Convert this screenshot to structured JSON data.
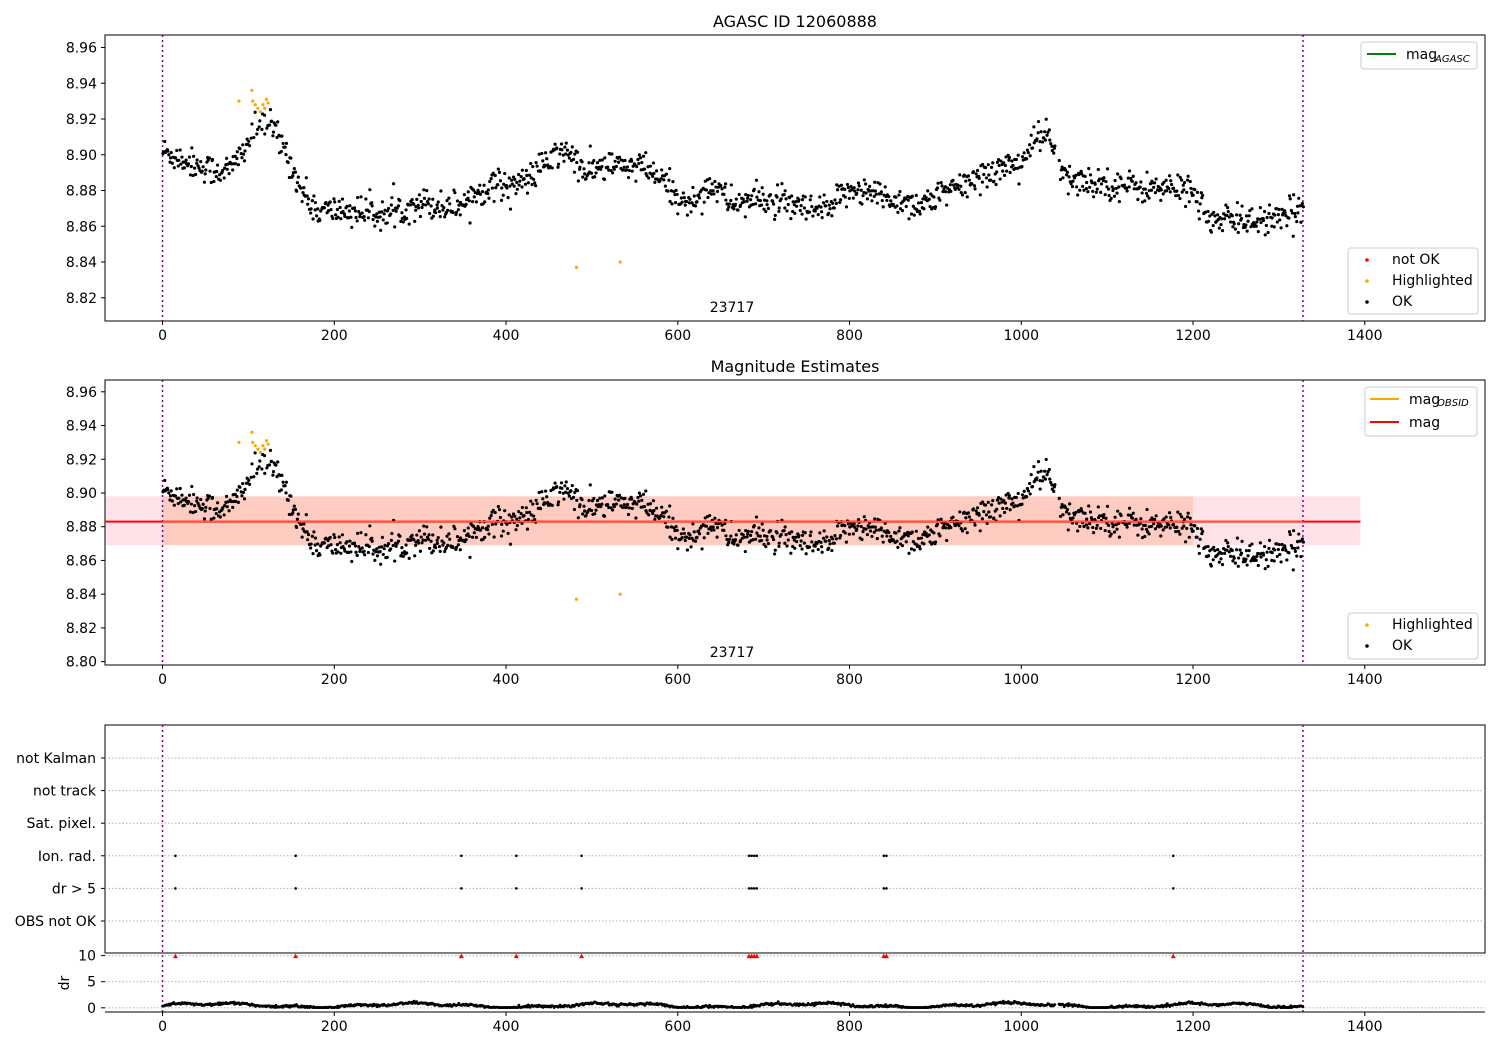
{
  "colors": {
    "ok": "#000000",
    "not_ok": "#ff0000",
    "highlighted": "#ffa500",
    "mag_agasc_line": "#008000",
    "mag_obsid_line": "#ffa500",
    "mag_line": "#ff0000",
    "band_outer": "#ffc0cb",
    "band_inner": "#ffa07a",
    "obs_boundary": "#800080",
    "grid": "#b0b0b0"
  },
  "chart_data": [
    {
      "id": "top",
      "type": "scatter",
      "title": "AGASC ID 12060888",
      "xlim": [
        -67,
        1540
      ],
      "ylim": [
        8.807,
        8.967
      ],
      "x_ticks": [
        0,
        200,
        400,
        600,
        800,
        1000,
        1200,
        1400
      ],
      "y_ticks": [
        8.82,
        8.84,
        8.86,
        8.88,
        8.9,
        8.92,
        8.94,
        8.96
      ],
      "obs_boundaries": [
        0,
        1328
      ],
      "obsid_label": {
        "text": "23717",
        "x": 664
      },
      "legend_lines": [
        {
          "label": "mag",
          "sub": "AGASC",
          "color_key": "mag_agasc_line"
        }
      ],
      "legend_points": [
        {
          "label": "not OK",
          "color_key": "not_ok"
        },
        {
          "label": "Highlighted",
          "color_key": "highlighted"
        },
        {
          "label": "OK",
          "color_key": "ok"
        }
      ],
      "series": [
        {
          "name": "OK",
          "color_key": "ok",
          "description": "black scatter of magnitude estimates for 0 to 1328 following the profile below"
        },
        {
          "name": "Highlighted",
          "color_key": "highlighted",
          "x": [
            89,
            104,
            108,
            111,
            114,
            117,
            119,
            121,
            123,
            105,
            482,
            533
          ],
          "y": [
            8.93,
            8.936,
            8.928,
            8.926,
            8.924,
            8.928,
            8.926,
            8.931,
            8.929,
            8.93,
            8.837,
            8.84
          ]
        }
      ],
      "profile": {
        "x": [
          0,
          30,
          60,
          80,
          100,
          115,
          130,
          145,
          160,
          180,
          200,
          240,
          260,
          300,
          320,
          345,
          380,
          420,
          440,
          470,
          490,
          520,
          560,
          590,
          610,
          640,
          660,
          700,
          760,
          780,
          800,
          850,
          880,
          920,
          960,
          1000,
          1020,
          1030,
          1050,
          1100,
          1150,
          1200,
          1220,
          1250,
          1300,
          1328
        ],
        "y": [
          8.902,
          8.896,
          8.891,
          8.892,
          8.908,
          8.918,
          8.914,
          8.9,
          8.881,
          8.868,
          8.869,
          8.868,
          8.866,
          8.874,
          8.871,
          8.872,
          8.883,
          8.884,
          8.893,
          8.903,
          8.89,
          8.894,
          8.893,
          8.882,
          8.871,
          8.884,
          8.873,
          8.875,
          8.868,
          8.87,
          8.882,
          8.875,
          8.872,
          8.88,
          8.89,
          8.896,
          8.91,
          8.912,
          8.886,
          8.884,
          8.881,
          8.881,
          8.862,
          8.864,
          8.863,
          8.87
        ]
      }
    },
    {
      "id": "middle",
      "type": "scatter",
      "title": "Magnitude Estimates",
      "xlim": [
        -67,
        1540
      ],
      "ylim": [
        8.798,
        8.967
      ],
      "x_ticks": [
        0,
        200,
        400,
        600,
        800,
        1000,
        1200,
        1400
      ],
      "y_ticks": [
        8.8,
        8.82,
        8.84,
        8.86,
        8.88,
        8.9,
        8.92,
        8.94,
        8.96
      ],
      "obs_boundaries": [
        0,
        1328
      ],
      "obsid_label": {
        "text": "23717",
        "x": 664
      },
      "mag": 8.883,
      "band_outer": {
        "x": [
          -67,
          1395
        ],
        "y": [
          8.869,
          8.898
        ]
      },
      "band_inner": {
        "x": [
          0,
          1200
        ],
        "y": [
          8.869,
          8.898
        ]
      },
      "legend_lines": [
        {
          "label": "mag",
          "sub": "OBSID",
          "color_key": "mag_obsid_line"
        },
        {
          "label": "mag",
          "sub": "",
          "color_key": "mag_line"
        }
      ],
      "legend_points": [
        {
          "label": "Highlighted",
          "color_key": "highlighted"
        },
        {
          "label": "OK",
          "color_key": "ok"
        }
      ]
    },
    {
      "id": "flags",
      "type": "scatter",
      "xlim": [
        -67,
        1540
      ],
      "categories": [
        "OBS not OK",
        "dr > 5",
        "Ion. rad.",
        "Sat. pixel.",
        "not track",
        "not Kalman"
      ],
      "flag_points": {
        "dr > 5": [
          15,
          155,
          348,
          412,
          488,
          683,
          686,
          689,
          692,
          840,
          843,
          1177
        ],
        "Ion. rad.": [
          15,
          155,
          348,
          412,
          488,
          683,
          686,
          689,
          692,
          840,
          843,
          1177
        ]
      }
    },
    {
      "id": "dr",
      "type": "line",
      "xlim": [
        -67,
        1540
      ],
      "ylim": [
        -0.8,
        10.5
      ],
      "y_ticks": [
        0,
        5,
        10
      ],
      "ylabel": "dr",
      "x_ticks": [
        0,
        200,
        400,
        600,
        800,
        1000,
        1200,
        1400
      ],
      "clipped_markers_x": [
        15,
        155,
        348,
        412,
        488,
        683,
        686,
        689,
        692,
        840,
        843,
        1177
      ]
    }
  ],
  "texts": {
    "top_title": "AGASC ID 12060888",
    "mid_title": "Magnitude Estimates",
    "obsid": "23717",
    "dr_label": "dr"
  }
}
